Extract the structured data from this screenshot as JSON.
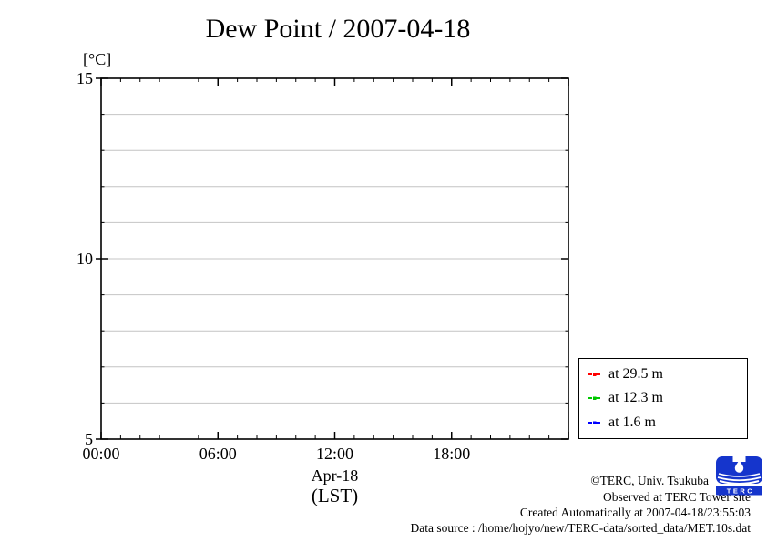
{
  "chart_data": {
    "type": "line",
    "title": "Dew Point / 2007-04-18",
    "ylabel": "[°C]",
    "xlabel_line1": "Apr-18",
    "xlabel_line2": "(LST)",
    "ylim": [
      5,
      15
    ],
    "ytick_major": [
      15,
      10,
      5
    ],
    "ytick_minor_step": 1,
    "xlim_hours": [
      0,
      24
    ],
    "xticks_major": [
      {
        "hour": 0,
        "label": "00:00"
      },
      {
        "hour": 6,
        "label": "06:00"
      },
      {
        "hour": 12,
        "label": "12:00"
      },
      {
        "hour": 18,
        "label": "18:00"
      }
    ],
    "xtick_major_step_hours": 6,
    "xtick_minor_step_hours": 1,
    "grid": true,
    "grid_color": "#c4c4c4",
    "frame_color": "#000000",
    "legend_position": "outside-right-bottom",
    "series": [
      {
        "name": "at 29.5 m",
        "color": "#ff0000",
        "points": []
      },
      {
        "name": "at 12.3 m",
        "color": "#00c800",
        "points": []
      },
      {
        "name": "at 1.6 m",
        "color": "#0000ff",
        "points": []
      }
    ]
  },
  "footer": {
    "copyright": "©TERC, Univ. Tsukuba",
    "observed": "Observed at TERC Tower site",
    "created": "Created Automatically at 2007-04-18/23:55:03",
    "datasource": "Data source : /home/hojyo/new/TERC-data/sorted_data/MET.10s.dat",
    "logo_text": "TERC"
  }
}
